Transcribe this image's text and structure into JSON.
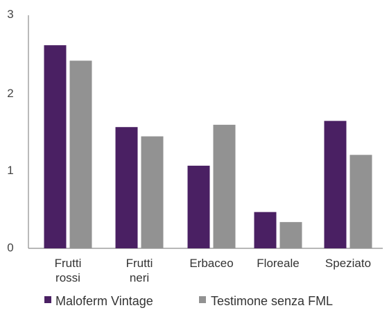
{
  "chart_data": {
    "type": "bar",
    "title": "",
    "xlabel": "",
    "ylabel": "",
    "ylim": [
      0,
      3
    ],
    "yticks": [
      0,
      1,
      2,
      3
    ],
    "grid": false,
    "legend_position": "bottom",
    "categories": [
      [
        "Frutti",
        "rossi"
      ],
      [
        "Frutti",
        "neri"
      ],
      [
        "Erbaceo"
      ],
      [
        "Floreale"
      ],
      [
        "Speziato"
      ]
    ],
    "series": [
      {
        "name": "Maloferm Vintage",
        "color": "#4a2063",
        "values": [
          2.63,
          1.57,
          1.07,
          0.47,
          1.65
        ]
      },
      {
        "name": "Testimone senza FML",
        "color": "#929292",
        "values": [
          2.43,
          1.45,
          1.6,
          0.34,
          1.21
        ]
      }
    ]
  }
}
